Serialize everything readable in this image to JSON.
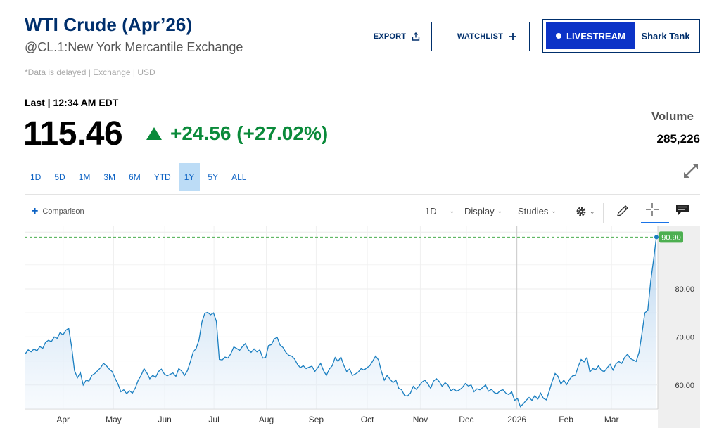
{
  "header": {
    "title": "WTI Crude (Apr’26)",
    "subtitle": "@CL.1:New York Mercantile Exchange",
    "delayed_note": "*Data is delayed | Exchange | USD"
  },
  "buttons": {
    "export": "EXPORT",
    "watchlist": "WATCHLIST",
    "livestream": "LIVESTREAM",
    "shark_tank": "Shark Tank"
  },
  "quote": {
    "last_label": "Last | 12:34 AM EDT",
    "price": "115.46",
    "change": "+24.56 (+27.02%)",
    "volume_label": "Volume",
    "volume": "285,226"
  },
  "ranges": [
    {
      "label": "1D",
      "active": false
    },
    {
      "label": "5D",
      "active": false
    },
    {
      "label": "1M",
      "active": false
    },
    {
      "label": "3M",
      "active": false
    },
    {
      "label": "6M",
      "active": false
    },
    {
      "label": "YTD",
      "active": false
    },
    {
      "label": "1Y",
      "active": true
    },
    {
      "label": "5Y",
      "active": false
    },
    {
      "label": "ALL",
      "active": false
    }
  ],
  "toolbar": {
    "comparison": "Comparison",
    "interval": "1D",
    "display": "Display",
    "studies": "Studies"
  },
  "colors": {
    "brand": "#002f6c",
    "accent": "#0c33c7",
    "positive": "#0a8a3a",
    "line": "#1a7fc1",
    "last_tag": "#4caf50"
  },
  "chart_data": {
    "type": "area",
    "y_ticks": [
      "60.00",
      "70.00",
      "80.00"
    ],
    "ylim": [
      55,
      93
    ],
    "last_value_label": "90.90",
    "last_value": 90.9,
    "x_labels": [
      "Apr",
      "May",
      "Jun",
      "Jul",
      "Aug",
      "Sep",
      "Oct",
      "Nov",
      "Dec",
      "2026",
      "Feb",
      "Mar"
    ],
    "grid": true,
    "series": [
      {
        "values": [
          66.5,
          67.3,
          66.9,
          67.5,
          67.1,
          68.0,
          67.6,
          68.9,
          69.3,
          69.0,
          70.0,
          69.7,
          70.9,
          70.4,
          71.4,
          71.8,
          68.0,
          63.0,
          61.5,
          62.6,
          60.0,
          61.0,
          60.8,
          62.0,
          62.4,
          63.0,
          63.6,
          64.5,
          64.0,
          63.3,
          62.8,
          61.4,
          60.2,
          58.6,
          59.0,
          58.2,
          58.8,
          58.3,
          59.4,
          61.0,
          62.0,
          63.4,
          62.5,
          61.3,
          62.0,
          61.6,
          62.8,
          63.3,
          62.3,
          61.9,
          62.2,
          62.5,
          61.8,
          63.4,
          62.9,
          62.0,
          63.0,
          64.8,
          66.9,
          67.6,
          69.4,
          73.1,
          74.9,
          75.1,
          74.6,
          75.0,
          73.2,
          65.3,
          65.2,
          65.8,
          65.6,
          66.5,
          67.9,
          67.6,
          67.2,
          68.0,
          68.6,
          67.3,
          66.8,
          67.5,
          66.9,
          67.3,
          65.6,
          65.7,
          68.2,
          68.4,
          69.6,
          69.9,
          68.3,
          67.8,
          66.8,
          66.2,
          66.0,
          65.4,
          64.3,
          63.6,
          64.0,
          63.4,
          63.7,
          63.9,
          62.8,
          63.6,
          64.5,
          63.0,
          62.0,
          63.3,
          64.0,
          65.7,
          64.9,
          65.8,
          64.1,
          62.8,
          63.3,
          62.0,
          62.3,
          62.7,
          63.4,
          63.1,
          63.6,
          64.0,
          65.0,
          66.0,
          65.2,
          62.8,
          61.0,
          62.0,
          61.2,
          60.5,
          61.0,
          59.3,
          59.0,
          57.8,
          57.7,
          58.3,
          59.7,
          59.1,
          59.8,
          60.6,
          61.0,
          60.3,
          59.3,
          60.8,
          61.3,
          60.7,
          59.7,
          60.5,
          60.0,
          58.8,
          59.2,
          58.7,
          59.0,
          59.5,
          60.3,
          59.8,
          60.0,
          58.6,
          59.2,
          59.0,
          59.5,
          60.0,
          58.7,
          59.1,
          58.4,
          58.2,
          58.8,
          59.0,
          58.3,
          58.0,
          58.6,
          56.8,
          57.2,
          55.5,
          56.1,
          56.8,
          57.4,
          56.8,
          57.8,
          57.0,
          58.3,
          57.2,
          56.9,
          58.8,
          60.8,
          62.4,
          61.8,
          60.2,
          61.0,
          60.1,
          61.2,
          61.9,
          62.0,
          63.9,
          65.3,
          64.8,
          65.7,
          62.7,
          63.4,
          63.2,
          64.0,
          63.0,
          62.8,
          63.6,
          64.3,
          63.1,
          64.4,
          64.9,
          64.5,
          65.7,
          66.4,
          65.5,
          65.2,
          64.9,
          66.8,
          70.7,
          75.0,
          75.5,
          81.5,
          86.0,
          90.9
        ]
      }
    ]
  }
}
